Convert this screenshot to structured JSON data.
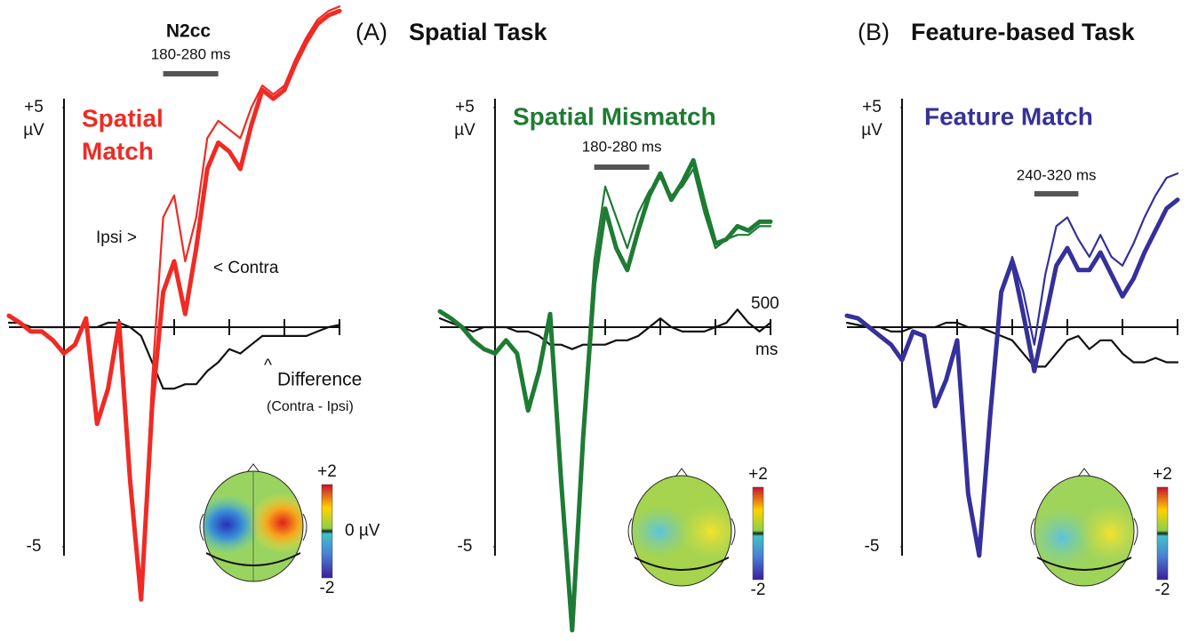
{
  "header": {
    "a_label": "(A)",
    "a_title": "Spatial Task",
    "b_label": "(B)",
    "b_title": "Feature-based Task"
  },
  "chart_data": [
    {
      "type": "line",
      "title_lines": [
        "Spatial",
        "Match"
      ],
      "title_color": "#ee2b24",
      "x": [
        -100,
        -80,
        -60,
        -40,
        -20,
        0,
        20,
        40,
        60,
        80,
        100,
        120,
        140,
        160,
        180,
        200,
        220,
        240,
        260,
        280,
        300,
        320,
        340,
        360,
        380,
        400,
        420,
        440,
        460,
        480,
        500
      ],
      "xlim": [
        -100,
        500
      ],
      "ylim": [
        -7,
        7.4
      ],
      "xticks": [
        0,
        100,
        200,
        300,
        400,
        500
      ],
      "yticks": [
        {
          "value": 5,
          "label": "+5"
        },
        -5
      ],
      "y_unit": "µV",
      "component": "N2cc",
      "windows": [
        {
          "label": "180-280 ms",
          "start": 180,
          "end": 280
        }
      ],
      "annotations": [
        "Ipsi >",
        "< Contra",
        "Difference",
        "(Contra - Ipsi)"
      ],
      "series": [
        {
          "color": "#ee2b24",
          "values": [
            0.26,
            0.1,
            -0.1,
            -0.1,
            -0.3,
            -0.6,
            -0.4,
            0.2,
            -2.2,
            -1.4,
            0.1,
            -3.5,
            -6.2,
            -1.8,
            0.8,
            1.5,
            0.3,
            1.8,
            3.6,
            4.2,
            4.0,
            3.6,
            4.6,
            5.4,
            5.2,
            5.4,
            6.0,
            6.5,
            6.9,
            7.1,
            7.2
          ]
        },
        {
          "color": "#ee2b24",
          "values": [
            0.26,
            0.1,
            -0.1,
            -0.1,
            -0.3,
            -0.6,
            -0.4,
            0.2,
            -2.2,
            -1.4,
            0.1,
            -3.5,
            -6.1,
            -1.2,
            2.5,
            3.0,
            1.5,
            2.5,
            4.3,
            4.7,
            4.5,
            4.3,
            5.0,
            5.5,
            5.3,
            5.5,
            6.1,
            6.6,
            7.0,
            7.2,
            7.3
          ]
        },
        {
          "color": "#111111",
          "values": [
            0.1,
            0.1,
            0,
            0,
            0,
            0,
            0,
            0,
            0,
            0.1,
            0.1,
            0,
            -0.2,
            -0.8,
            -1.4,
            -1.4,
            -1.3,
            -1.3,
            -1.0,
            -0.8,
            -0.5,
            -0.6,
            -0.4,
            -0.2,
            -0.2,
            -0.2,
            -0.2,
            -0.2,
            -0.1,
            0,
            0.05
          ]
        }
      ]
    },
    {
      "type": "line",
      "title_lines": [
        "Spatial Mismatch"
      ],
      "title_color": "#1e7b34",
      "x": [
        -100,
        -80,
        -60,
        -40,
        -20,
        0,
        20,
        40,
        60,
        80,
        100,
        120,
        140,
        160,
        180,
        200,
        220,
        240,
        260,
        280,
        300,
        320,
        340,
        360,
        380,
        400,
        420,
        440,
        460,
        480,
        500
      ],
      "xlim": [
        -100,
        500
      ],
      "ylim": [
        -7,
        7.4
      ],
      "xticks": [
        0,
        100,
        200,
        300,
        400,
        500
      ],
      "yticks": [
        {
          "value": 5,
          "label": "+5"
        },
        -5
      ],
      "y_unit": "µV",
      "x_end_label": "500",
      "x_unit": "ms",
      "windows": [
        {
          "label": "180-280 ms",
          "start": 180,
          "end": 280
        }
      ],
      "series": [
        {
          "color": "#1e7b34",
          "values": [
            0.36,
            0.2,
            0,
            -0.3,
            -0.5,
            -0.6,
            -0.3,
            -0.6,
            -1.9,
            -1.0,
            0.3,
            -3.5,
            -6.9,
            -2.5,
            1.0,
            2.7,
            1.8,
            1.3,
            2.2,
            3.0,
            3.5,
            2.9,
            3.3,
            3.8,
            2.8,
            1.9,
            2.0,
            2.3,
            2.2,
            2.4,
            2.4
          ]
        },
        {
          "color": "#1e7b34",
          "values": [
            0.36,
            0.2,
            0,
            -0.3,
            -0.5,
            -0.6,
            -0.3,
            -0.6,
            -1.8,
            -0.9,
            0.3,
            -3.5,
            -6.8,
            -2.2,
            1.5,
            3.2,
            2.5,
            1.8,
            2.6,
            3.1,
            3.4,
            3.0,
            3.2,
            3.6,
            2.6,
            1.8,
            2.0,
            2.1,
            2.1,
            2.3,
            2.3
          ]
        },
        {
          "color": "#111111",
          "values": [
            0.2,
            0.1,
            0,
            -0.1,
            0,
            0,
            0,
            -0.1,
            -0.1,
            -0.2,
            -0.4,
            -0.4,
            -0.5,
            -0.4,
            -0.4,
            -0.4,
            -0.3,
            -0.3,
            -0.2,
            0,
            0.2,
            0,
            -0.1,
            -0.1,
            -0.1,
            0,
            0.1,
            0.4,
            0.1,
            -0.1,
            0.1
          ]
        }
      ]
    },
    {
      "type": "line",
      "title_lines": [
        "Feature Match"
      ],
      "title_color": "#35309a",
      "x": [
        -100,
        -80,
        -60,
        -40,
        -20,
        0,
        20,
        40,
        60,
        80,
        100,
        120,
        140,
        160,
        180,
        200,
        220,
        240,
        260,
        280,
        300,
        320,
        340,
        360,
        380,
        400,
        420,
        440,
        460,
        480,
        500
      ],
      "xlim": [
        -100,
        500
      ],
      "ylim": [
        -7,
        7.4
      ],
      "xticks": [
        0,
        100,
        200,
        300,
        400,
        500
      ],
      "yticks": [
        {
          "value": 5,
          "label": "+5"
        },
        -5
      ],
      "y_unit": "µV",
      "windows": [
        {
          "label": "240-320 ms",
          "start": 240,
          "end": 320
        }
      ],
      "series": [
        {
          "color": "#35309a",
          "values": [
            0.26,
            0.2,
            0,
            -0.2,
            -0.4,
            -0.75,
            -0.1,
            -0.2,
            -1.8,
            -1.2,
            -0.3,
            -3.8,
            -5.2,
            -2.0,
            0.8,
            1.5,
            0.3,
            -1.0,
            0.2,
            1.4,
            1.8,
            1.3,
            1.3,
            1.7,
            1.2,
            0.7,
            1.1,
            1.7,
            2.2,
            2.7,
            2.9
          ]
        },
        {
          "color": "#35309a",
          "values": [
            0.26,
            0.2,
            0,
            -0.2,
            -0.4,
            -0.75,
            -0.1,
            -0.2,
            -1.8,
            -1.2,
            -0.3,
            -3.8,
            -5.2,
            -2.0,
            0.8,
            1.6,
            0.8,
            -0.4,
            1.2,
            2.3,
            2.5,
            2.0,
            1.6,
            2.1,
            1.6,
            1.4,
            1.9,
            2.5,
            3.0,
            3.4,
            3.5
          ]
        },
        {
          "color": "#111111",
          "values": [
            0.1,
            0.05,
            0,
            0,
            -0.1,
            -0.1,
            0,
            0,
            0,
            0.1,
            0.1,
            0,
            0,
            -0.1,
            -0.2,
            -0.3,
            -0.6,
            -0.9,
            -0.9,
            -0.6,
            -0.3,
            -0.2,
            -0.5,
            -0.3,
            -0.3,
            -0.6,
            -0.8,
            -0.8,
            -0.7,
            -0.8,
            -0.8
          ]
        }
      ]
    }
  ],
  "colorbars": [
    {
      "max": {
        "value": 2,
        "label": "+2"
      },
      "min": -2,
      "mid": {
        "value": 0,
        "label": "0 µV"
      }
    },
    {
      "max": {
        "value": 2,
        "label": "+2"
      },
      "min": -2
    },
    {
      "max": {
        "value": 2,
        "label": "+2"
      },
      "min": -2
    }
  ]
}
